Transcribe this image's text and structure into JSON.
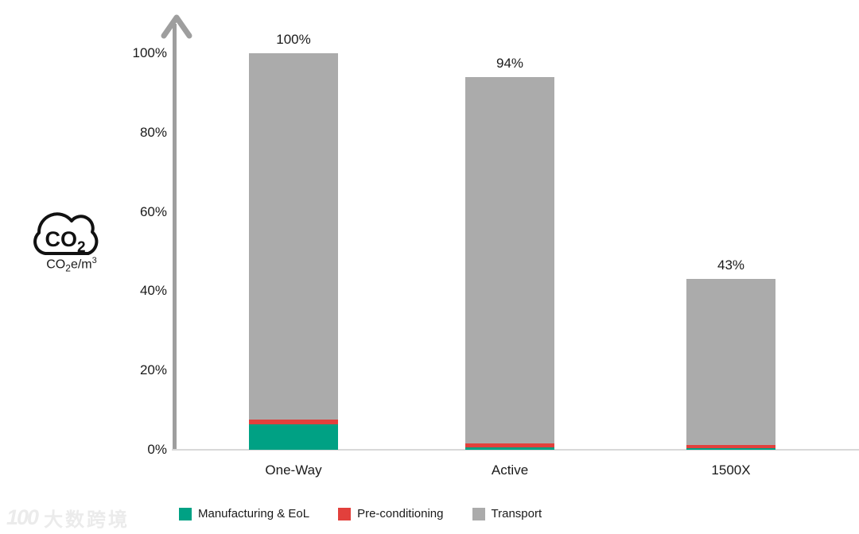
{
  "chart_data": {
    "type": "bar",
    "stacked": true,
    "categories": [
      "One-Way",
      "Active",
      "1500X"
    ],
    "series": [
      {
        "name": "Manufacturing & EoL",
        "color": "#00A184",
        "values": [
          6.5,
          0.6,
          0.4
        ]
      },
      {
        "name": "Pre-conditioning",
        "color": "#E2403C",
        "values": [
          1.2,
          1.0,
          0.8
        ]
      },
      {
        "name": "Transport",
        "color": "#ABABAB",
        "values": [
          92.3,
          92.4,
          41.8
        ]
      }
    ],
    "bar_totals": [
      "100%",
      "94%",
      "43%"
    ],
    "y_ticks": [
      "100%",
      "80%",
      "60%",
      "40%",
      "20%",
      "0%"
    ],
    "ylim": [
      0,
      100
    ],
    "grid": false,
    "legend_position": "bottom"
  },
  "co2_badge": {
    "gas": "CO",
    "gas_sub": "2",
    "unit_prefix": "CO",
    "unit_sub": "2",
    "unit_mid": "e/m",
    "unit_sup": "3"
  },
  "watermark": {
    "logo": "100",
    "text": "大数跨境"
  },
  "colors": {
    "axis": "#9E9E9E",
    "baseline": "#D8D8D8",
    "text": "#1A1A1A"
  }
}
